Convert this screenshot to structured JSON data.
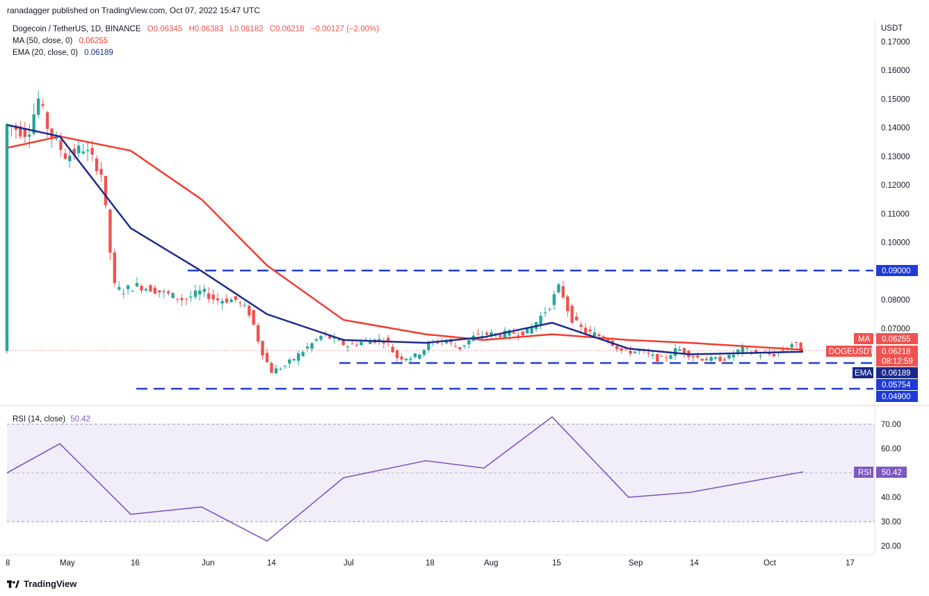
{
  "header": {
    "published": "ranadagger published on TradingView.com, Oct 07, 2022 15:47 UTC"
  },
  "legend": {
    "symbol": "Dogecoin / TetherUS, 1D, BINANCE",
    "open": "O0.06345",
    "high": "H0.06383",
    "low": "L0.06182",
    "close": "C0.06218",
    "change": "−0.00127 (−2.00%)",
    "ma_label": "MA (50, close, 0)",
    "ma_value": "0.06255",
    "ema_label": "EMA (20, close, 0)",
    "ema_value": "0.06189",
    "rsi_label": "RSI (14, close)",
    "rsi_value": "50.42"
  },
  "price_axis": {
    "currency": "USDT",
    "ticks": [
      "0.17000",
      "0.16000",
      "0.15000",
      "0.14000",
      "0.13000",
      "0.12000",
      "0.11000",
      "0.10000",
      "0.08000",
      "0.07000"
    ]
  },
  "rsi_axis": {
    "ticks": [
      "70.00",
      "60.00",
      "40.00",
      "30.00",
      "20.00"
    ]
  },
  "x_axis": {
    "ticks": [
      "8",
      "May",
      "16",
      "Jun",
      "14",
      "Jul",
      "18",
      "Aug",
      "15",
      "Sep",
      "14",
      "Oct",
      "17"
    ]
  },
  "tags": {
    "ma_tag": "MA",
    "ma_val": "0.06255",
    "price_tag": "DOGEUSDT",
    "price_val": "0.06218",
    "countdown": "08:12:59",
    "ema_tag": "EMA",
    "ema_val": "0.06189",
    "lvl_5754": "0.05754",
    "lvl_4900": "0.04900",
    "lvl_9000": "0.09000",
    "rsi_tag": "RSI",
    "rsi_val": "50.42"
  },
  "colors": {
    "up": "#26a69a",
    "down": "#ef5350",
    "ma": "#f23b2e",
    "ema": "#1a2a8c",
    "rsi": "#7e57c2",
    "level": "#1f3bd6"
  },
  "footer": {
    "brand": "TradingView"
  },
  "chart_data": {
    "type": "line",
    "title": "Dogecoin / TetherUS, 1D, BINANCE",
    "ylabel": "USDT",
    "ylim": [
      0.045,
      0.172
    ],
    "horizontal_levels": [
      0.09,
      0.05754,
      0.049
    ],
    "series": [
      {
        "name": "MA (50, close, 0)",
        "x": [
          "8",
          "May",
          "16",
          "Jun",
          "14",
          "Jul",
          "18",
          "Aug",
          "15",
          "Sep",
          "14",
          "Oct"
        ],
        "values": [
          0.133,
          0.137,
          0.132,
          0.115,
          0.092,
          0.073,
          0.068,
          0.066,
          0.068,
          0.066,
          0.065,
          0.0626
        ]
      },
      {
        "name": "EMA (20, close, 0)",
        "x": [
          "8",
          "May",
          "16",
          "Jun",
          "14",
          "Jul",
          "18",
          "Aug",
          "15",
          "Sep",
          "14",
          "Oct"
        ],
        "values": [
          0.141,
          0.137,
          0.105,
          0.09,
          0.075,
          0.066,
          0.065,
          0.067,
          0.072,
          0.063,
          0.061,
          0.0619
        ]
      },
      {
        "name": "RSI (14, close)",
        "x": [
          "8",
          "May",
          "16",
          "Jun",
          "14",
          "Jul",
          "18",
          "Aug",
          "15",
          "Sep",
          "14",
          "Oct"
        ],
        "values": [
          50,
          62,
          33,
          36,
          22,
          48,
          55,
          52,
          73,
          40,
          42,
          50.42
        ]
      }
    ]
  }
}
